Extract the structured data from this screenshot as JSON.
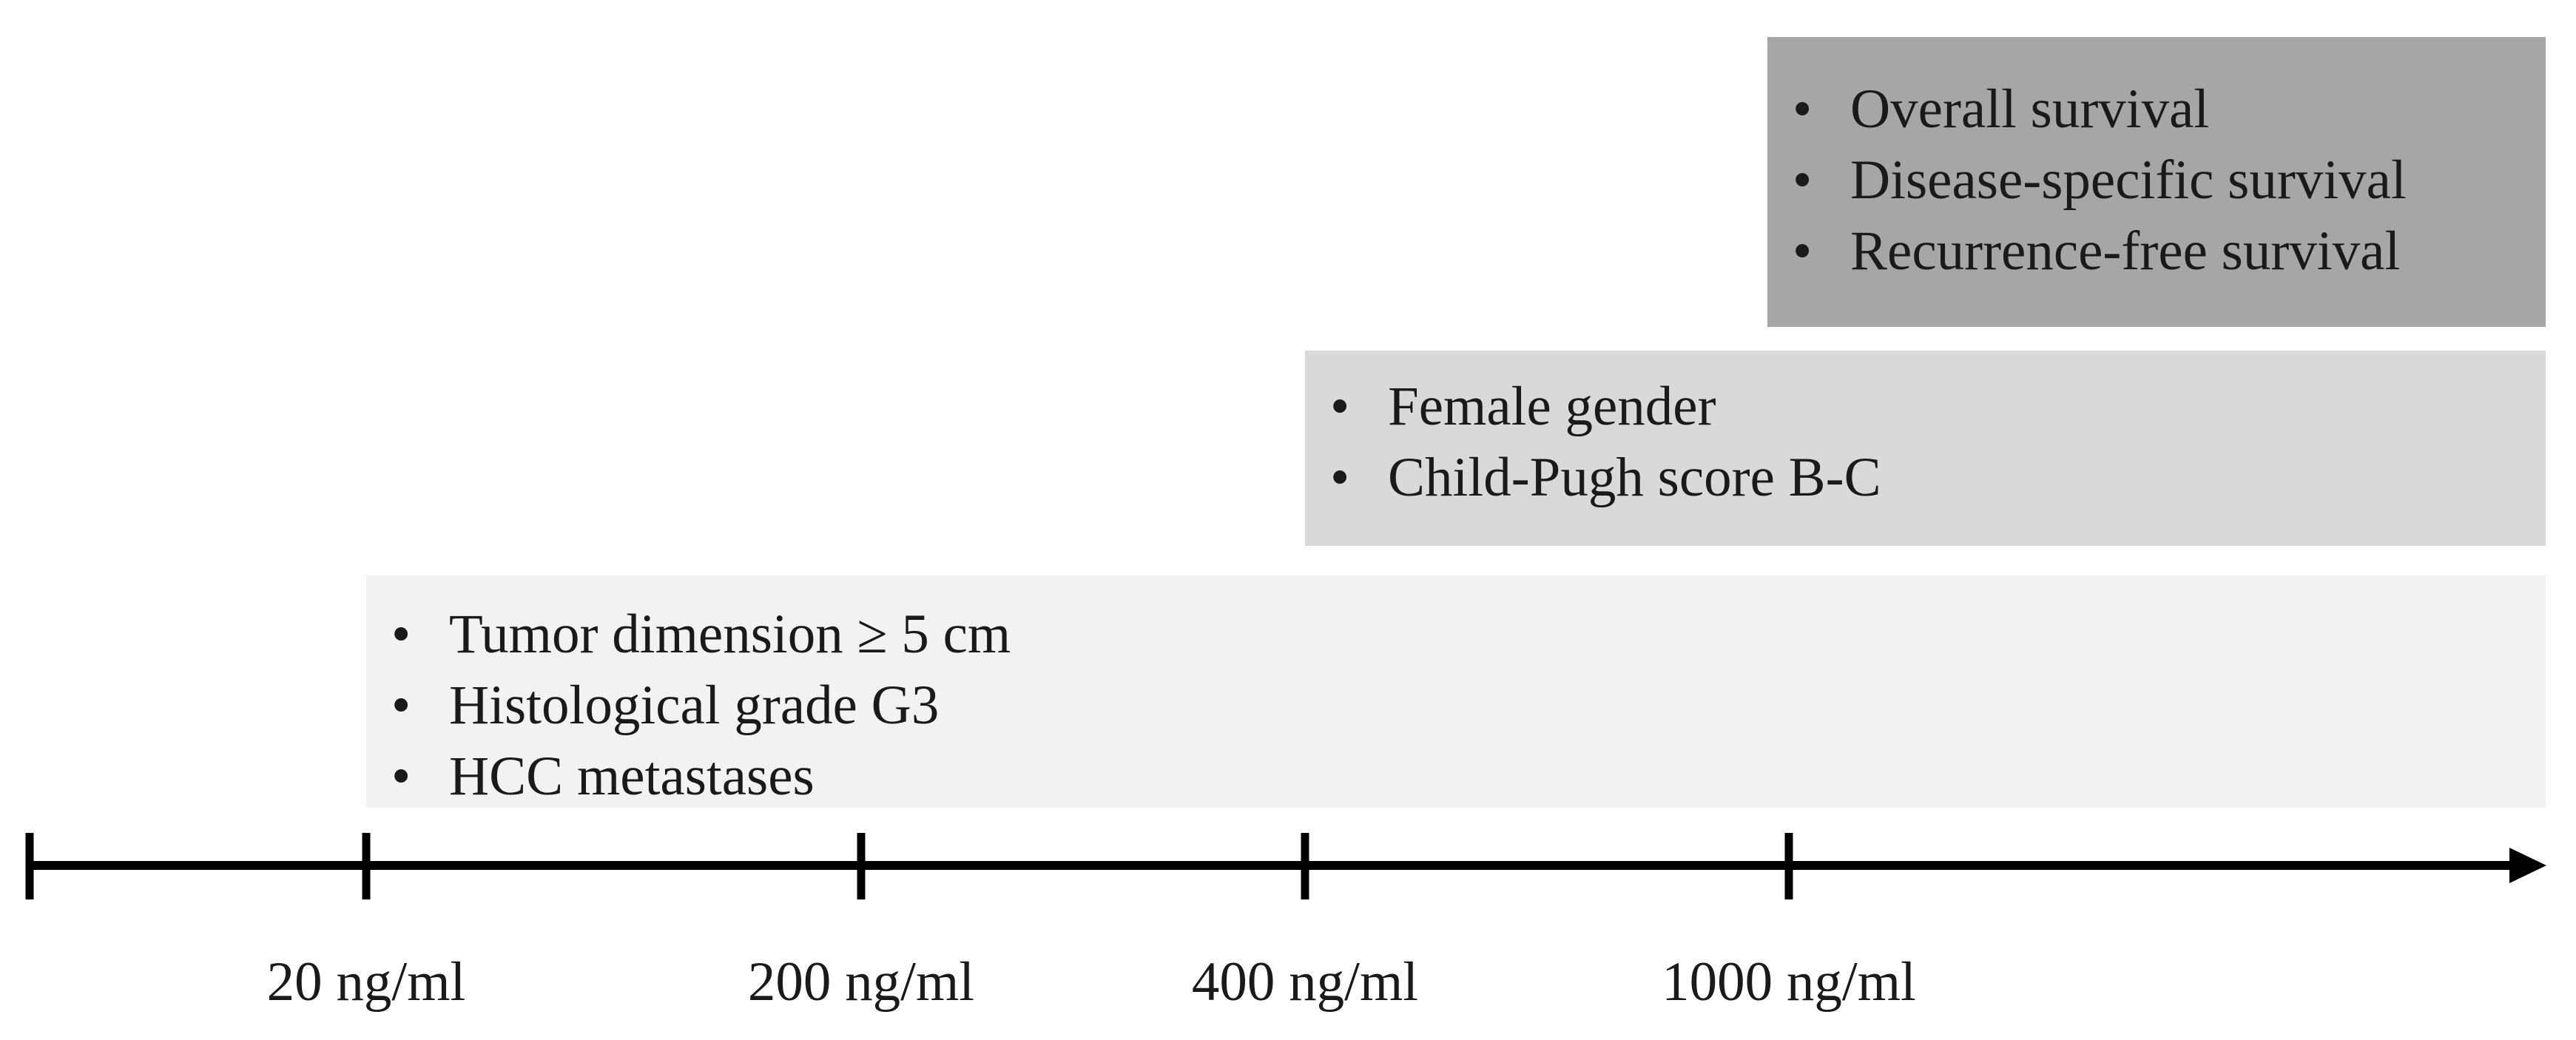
{
  "colors": {
    "band_top": "#a6a6a6",
    "band_mid": "#d9d9d9",
    "band_low": "#f2f2f2",
    "axis": "#000000",
    "text": "#1a1a1a"
  },
  "bands": {
    "top": {
      "items": [
        "Overall survival",
        "Disease-specific survival",
        "Recurrence-free survival"
      ]
    },
    "mid": {
      "items": [
        "Female gender",
        "Child-Pugh score B-C"
      ]
    },
    "low": {
      "items": [
        "Tumor dimension ≥ 5 cm",
        "Histological grade G3",
        "HCC metastases"
      ]
    }
  },
  "axis": {
    "ticks": [
      "20 ng/ml",
      "200 ng/ml",
      "400 ng/ml",
      "1000 ng/ml"
    ]
  }
}
